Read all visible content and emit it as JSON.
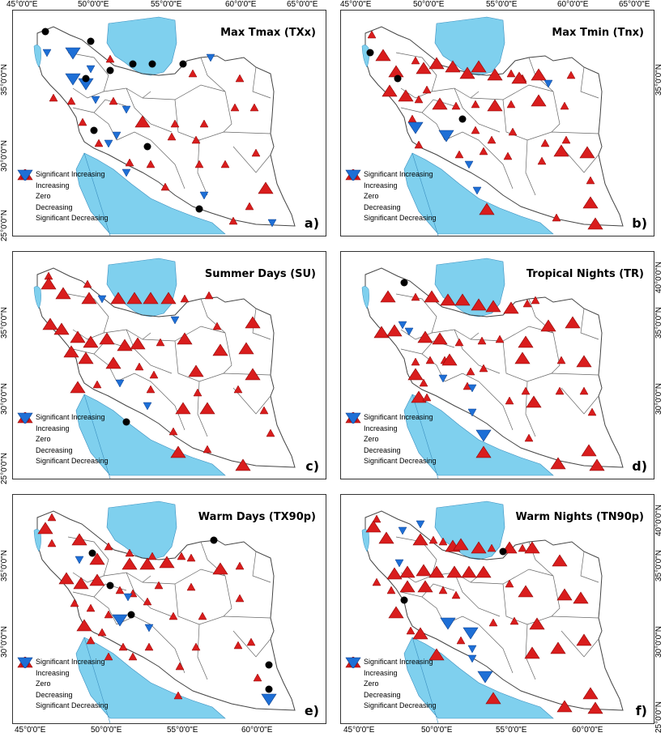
{
  "colors": {
    "sea": "#7fd0ee",
    "increase": "#d91d1d",
    "decrease": "#1e6fd6",
    "zero": "#000000",
    "border": "#666666"
  },
  "top_ticks": [
    "45°0'0\"E",
    "50°0'0\"E",
    "55°0'0\"E",
    "60°0'0\"E",
    "65°0'0\"E"
  ],
  "bottom_ticks": [
    "45°0'0\"E",
    "50°0'0\"E",
    "55°0'0\"E",
    "60°0'0\"E"
  ],
  "lat_ticks": [
    "35°0'0\"N",
    "30°0'0\"N",
    "25°0'0\"N"
  ],
  "lat_ticks_right": [
    "40°0'0\"N",
    "35°0'0\"N",
    "30°0'0\"N",
    "25°0'0\"N"
  ],
  "legend": {
    "sig_inc": "Significant Increasing",
    "inc": "Increasing",
    "zero": "Zero",
    "dec": "Decreasing",
    "sig_dec": "Significant Decreasing"
  },
  "panels": [
    {
      "title": "Max Tmax (TXx)",
      "label": "a)"
    },
    {
      "title": "Max Tmin (Tnx)",
      "label": "b)"
    },
    {
      "title": "Summer Days (SU)",
      "label": "c)"
    },
    {
      "title": "Tropical Nights (TR)",
      "label": "d)"
    },
    {
      "title": "Warm Days (TX90p)",
      "label": "e)"
    },
    {
      "title": "Warm Nights (TN90p)",
      "label": "f)"
    }
  ]
}
